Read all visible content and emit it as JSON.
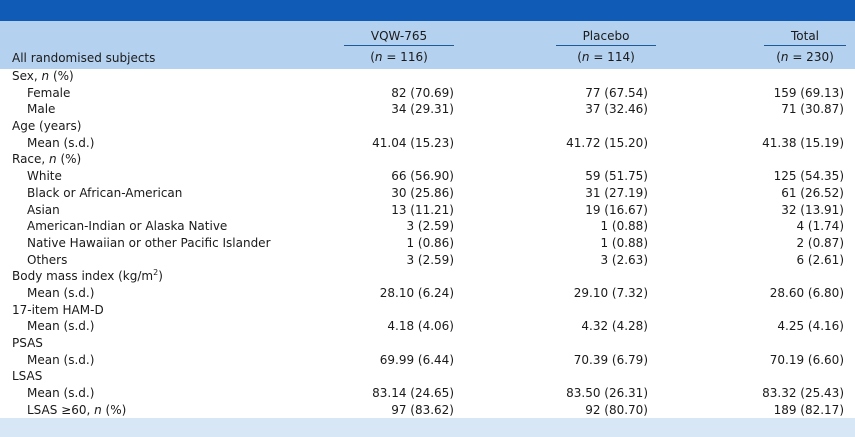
{
  "header": {
    "row_label": "All randomised subjects",
    "columns": [
      {
        "title": "VQW-765",
        "n_pre": "(",
        "n_var": "n",
        "n_post": " = 116)"
      },
      {
        "title": "Placebo",
        "n_pre": "(",
        "n_var": "n",
        "n_post": " = 114)"
      },
      {
        "title": "Total",
        "n_pre": "(",
        "n_var": "n",
        "n_post": " = 230)"
      }
    ]
  },
  "rows": [
    {
      "label": "Sex, ",
      "label_italic": "n",
      "label_rest": " (%)",
      "values": [
        "",
        "",
        ""
      ]
    },
    {
      "label": "Female",
      "values": [
        "82 (70.69)",
        "77 (67.54)",
        "159 (69.13)"
      ]
    },
    {
      "label": "Male",
      "values": [
        "34 (29.31)",
        "37 (32.46)",
        "71 (30.87)"
      ]
    },
    {
      "label": "Age (years)",
      "values": [
        "",
        "",
        ""
      ]
    },
    {
      "label": "Mean (s.d.)",
      "values": [
        "41.04 (15.23)",
        "41.72 (15.20)",
        "41.38 (15.19)"
      ]
    },
    {
      "label": "Race, ",
      "label_italic": "n",
      "label_rest": " (%)",
      "values": [
        "",
        "",
        ""
      ]
    },
    {
      "label": "White",
      "values": [
        "66 (56.90)",
        "59 (51.75)",
        "125 (54.35)"
      ]
    },
    {
      "label": "Black or African-American",
      "values": [
        "30 (25.86)",
        "31 (27.19)",
        "61 (26.52)"
      ]
    },
    {
      "label": "Asian",
      "values": [
        "13 (11.21)",
        "19 (16.67)",
        "32 (13.91)"
      ]
    },
    {
      "label": "American-Indian or Alaska Native",
      "values": [
        "3 (2.59)",
        "1 (0.88)",
        "4 (1.74)"
      ]
    },
    {
      "label": "Native Hawaiian or other Pacific Islander",
      "values": [
        "1 (0.86)",
        "1 (0.88)",
        "2 (0.87)"
      ]
    },
    {
      "label": "Others",
      "values": [
        "3 (2.59)",
        "3 (2.63)",
        "6 (2.61)"
      ]
    },
    {
      "label": "Body mass index (kg/m",
      "label_sup": "2",
      "label_rest": ")",
      "values": [
        "",
        "",
        ""
      ]
    },
    {
      "label": "Mean (s.d.)",
      "values": [
        "28.10 (6.24)",
        "29.10 (7.32)",
        "28.60 (6.80)"
      ]
    },
    {
      "label": "17-item HAM-D",
      "values": [
        "",
        "",
        ""
      ]
    },
    {
      "label": "Mean (s.d.)",
      "values": [
        "4.18 (4.06)",
        "4.32 (4.28)",
        "4.25 (4.16)"
      ]
    },
    {
      "label": "PSAS",
      "values": [
        "",
        "",
        ""
      ]
    },
    {
      "label": "Mean (s.d.)",
      "values": [
        "69.99 (6.44)",
        "70.39 (6.79)",
        "70.19 (6.60)"
      ]
    },
    {
      "label": "LSAS",
      "values": [
        "",
        "",
        ""
      ]
    },
    {
      "label": "Mean (s.d.)",
      "values": [
        "83.14 (24.65)",
        "83.50 (26.31)",
        "83.32 (25.43)"
      ]
    },
    {
      "label": "LSAS ≥60, ",
      "label_italic": "n",
      "label_rest": " (%)",
      "values": [
        "97 (83.62)",
        "92 (80.70)",
        "189 (82.17)"
      ]
    }
  ],
  "colors": {
    "top_bar": "#0f5bb5",
    "header_band": "#b4d1ef",
    "bottom_band": "#d7e7f6",
    "rule": "#1f5a96"
  }
}
